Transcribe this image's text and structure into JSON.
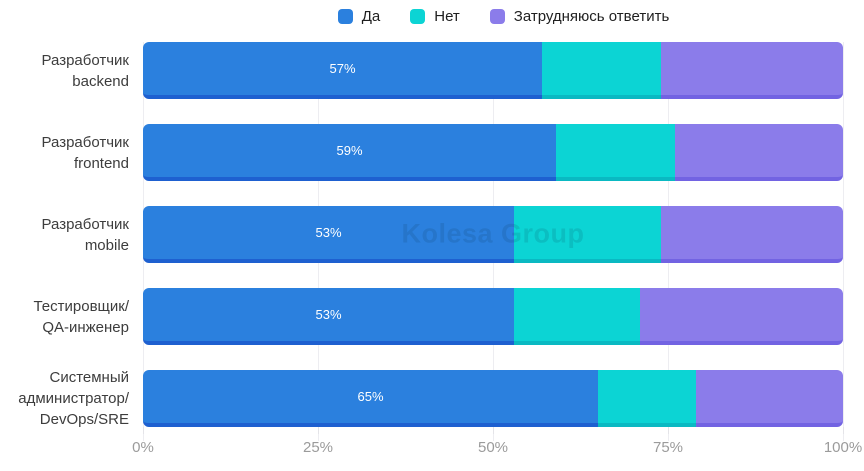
{
  "watermark": "Kolesa Group",
  "colors": {
    "yes": "#2b80de",
    "yes_dark": "#1e60d0",
    "no": "#0cd4d4",
    "no_dark": "#0ab9c2",
    "undecided": "#8b7cea",
    "undecided_dark": "#7263e2",
    "grid": "#ededf1",
    "axis_label": "#9b9b9b",
    "category_label": "#3d3d3d",
    "bar_label": "#ffffff"
  },
  "legend": {
    "items": [
      {
        "label": "Да",
        "color_key": "yes"
      },
      {
        "label": "Нет",
        "color_key": "no"
      },
      {
        "label": "Затрудняюсь ответить",
        "color_key": "undecided"
      }
    ]
  },
  "chart_data": {
    "type": "bar",
    "orientation": "horizontal",
    "stacked": true,
    "title": "",
    "xlabel": "",
    "ylabel": "",
    "xlim": [
      0,
      100
    ],
    "grid": true,
    "legend_position": "top",
    "categories": [
      {
        "name": "Разработчик backend",
        "lines": [
          "Разработчик",
          "backend"
        ]
      },
      {
        "name": "Разработчик frontend",
        "lines": [
          "Разработчик",
          "frontend"
        ]
      },
      {
        "name": "Разработчик mobile",
        "lines": [
          "Разработчик",
          "mobile"
        ]
      },
      {
        "name": "Тестировщик/QA-инженер",
        "lines": [
          "Тестировщик/",
          "QA-инженер"
        ]
      },
      {
        "name": "Системный администратор/DevOps/SRE",
        "lines": [
          "Системный",
          "администратор/",
          "DevOps/SRE"
        ]
      }
    ],
    "series": [
      {
        "name": "Да",
        "color_key": "yes",
        "values": [
          57,
          59,
          53,
          53,
          65
        ]
      },
      {
        "name": "Нет",
        "color_key": "no",
        "values": [
          17,
          17,
          21,
          18,
          14
        ]
      },
      {
        "name": "Затрудняюсь ответить",
        "color_key": "undecided",
        "values": [
          26,
          24,
          26,
          29,
          21
        ]
      }
    ],
    "bar_labels": [
      "57%",
      "59%",
      "53%",
      "53%",
      "65%"
    ],
    "x_ticks": [
      {
        "label": "0%",
        "value": 0
      },
      {
        "label": "25%",
        "value": 25
      },
      {
        "label": "50%",
        "value": 50
      },
      {
        "label": "75%",
        "value": 75
      },
      {
        "label": "100%",
        "value": 100
      }
    ]
  }
}
